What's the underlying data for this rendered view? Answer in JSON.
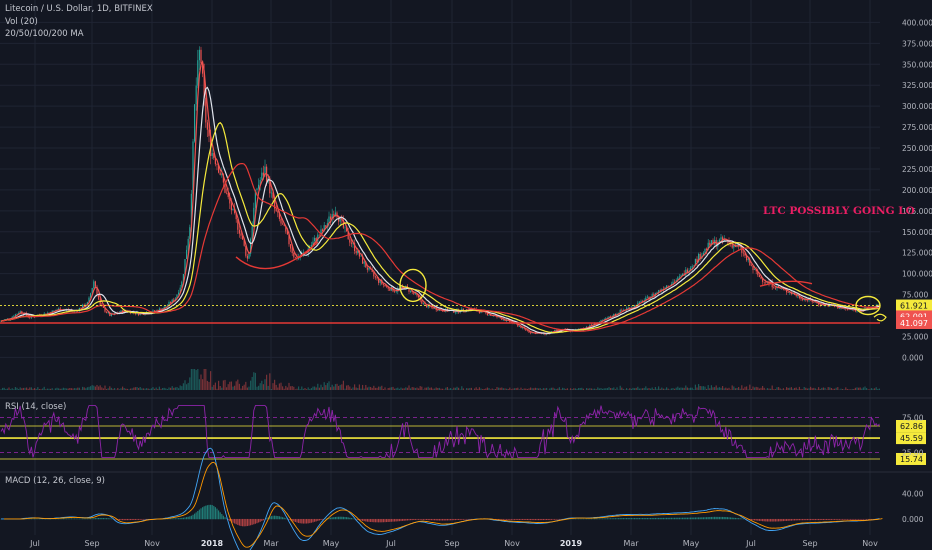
{
  "legend": {
    "symbol": "Litecoin / U.S. Dollar, 1D, BITFINEX",
    "volume": "Vol (20)",
    "ma": "20/50/100/200 MA",
    "rsi": "RSI (14, close)",
    "macd": "MACD (12, 26, close, 9)"
  },
  "colors": {
    "background": "#131722",
    "grid": "#1f2433",
    "axis_text": "#b2b5be",
    "candle_up": "#26a69a",
    "candle_down": "#ef5350",
    "ma20": "#ef5350",
    "ma50": "#e0e3eb",
    "ma100": "#f5ea3c",
    "ma200": "#e53935",
    "annotation_yellow": "#f5ea3c",
    "annotation_red": "#e53935",
    "rsi_line": "#8e24aa",
    "macd_line": "#42a5f5",
    "signal_line": "#ff9800",
    "title_text": "#e91e63"
  },
  "chart_data": [
    {
      "type": "line",
      "subtype": "candlestick",
      "x_ticks": [
        "Jul",
        "Sep",
        "Nov",
        "2018",
        "Mar",
        "May",
        "Jul",
        "Sep",
        "Nov",
        "2019",
        "Mar",
        "May",
        "Jul",
        "Sep",
        "Nov"
      ],
      "y_ticks": [
        400,
        375,
        350,
        325,
        300,
        275,
        250,
        225,
        200,
        175,
        150,
        125,
        100,
        75,
        25,
        0
      ],
      "y_tick_labels": [
        "400.000",
        "375.000",
        "350.000",
        "325.000",
        "300.000",
        "275.000",
        "250.000",
        "225.000",
        "200.000",
        "175.000",
        "150.000",
        "125.000",
        "100.000",
        "75.000",
        "25.000",
        "0.000"
      ],
      "ylim": [
        -15,
        410
      ],
      "price_path": [
        [
          0,
          43
        ],
        [
          10,
          47
        ],
        [
          20,
          55
        ],
        [
          30,
          48
        ],
        [
          45,
          52
        ],
        [
          60,
          58
        ],
        [
          75,
          55
        ],
        [
          88,
          65
        ],
        [
          94,
          92
        ],
        [
          100,
          62
        ],
        [
          110,
          50
        ],
        [
          125,
          56
        ],
        [
          140,
          52
        ],
        [
          155,
          55
        ],
        [
          165,
          60
        ],
        [
          175,
          70
        ],
        [
          182,
          90
        ],
        [
          190,
          160
        ],
        [
          195,
          310
        ],
        [
          200,
          370
        ],
        [
          205,
          290
        ],
        [
          210,
          250
        ],
        [
          218,
          230
        ],
        [
          225,
          200
        ],
        [
          232,
          175
        ],
        [
          240,
          150
        ],
        [
          248,
          115
        ],
        [
          256,
          200
        ],
        [
          265,
          225
        ],
        [
          275,
          175
        ],
        [
          285,
          150
        ],
        [
          295,
          118
        ],
        [
          305,
          125
        ],
        [
          315,
          140
        ],
        [
          325,
          155
        ],
        [
          335,
          178
        ],
        [
          345,
          150
        ],
        [
          355,
          130
        ],
        [
          365,
          110
        ],
        [
          375,
          95
        ],
        [
          385,
          85
        ],
        [
          395,
          80
        ],
        [
          405,
          84
        ],
        [
          415,
          75
        ],
        [
          425,
          62
        ],
        [
          440,
          57
        ],
        [
          455,
          55
        ],
        [
          470,
          58
        ],
        [
          485,
          53
        ],
        [
          500,
          47
        ],
        [
          515,
          40
        ],
        [
          530,
          30
        ],
        [
          545,
          28
        ],
        [
          560,
          33
        ],
        [
          575,
          32
        ],
        [
          590,
          38
        ],
        [
          605,
          45
        ],
        [
          620,
          55
        ],
        [
          635,
          62
        ],
        [
          650,
          72
        ],
        [
          665,
          85
        ],
        [
          680,
          95
        ],
        [
          695,
          115
        ],
        [
          710,
          135
        ],
        [
          725,
          140
        ],
        [
          740,
          130
        ],
        [
          750,
          110
        ],
        [
          760,
          95
        ],
        [
          770,
          88
        ],
        [
          780,
          82
        ],
        [
          790,
          78
        ],
        [
          800,
          72
        ],
        [
          810,
          68
        ],
        [
          820,
          64
        ],
        [
          830,
          62
        ],
        [
          845,
          58
        ],
        [
          860,
          56
        ],
        [
          870,
          60
        ],
        [
          878,
          62
        ]
      ],
      "moving_averages": [
        {
          "name": "20",
          "color_key": "ma20",
          "lag": 4,
          "window": 20
        },
        {
          "name": "50",
          "color_key": "ma50",
          "lag": 10,
          "window": 50
        },
        {
          "name": "100",
          "color_key": "ma100",
          "lag": 20,
          "window": 100
        },
        {
          "name": "200",
          "color_key": "ma200",
          "lag": 40,
          "window": 200
        }
      ],
      "horizontal_lines": [
        {
          "value": 61.921,
          "label": "61.921",
          "style": "dotted",
          "color_key": "annotation_yellow",
          "label_bg": "#f5ea3c",
          "label_fg": "#131722"
        },
        {
          "value": 62.091,
          "label": "62.091",
          "style": "none",
          "color_key": "candle_down",
          "label_bg": "#ef5350",
          "label_fg": "#ffffff"
        },
        {
          "value": 41.097,
          "label": "41.097",
          "style": "solid",
          "color_key": "annotation_red",
          "label_bg": "#ef5350",
          "label_fg": "#ffffff"
        }
      ],
      "annotations": [
        {
          "text": "LTC POSSIBLY GOING LO",
          "color_key": "title_text"
        }
      ]
    },
    {
      "type": "line",
      "title": "RSI (14, close)",
      "ylim": [
        0,
        100
      ],
      "y_ticks": [
        75,
        25
      ],
      "y_tick_labels": [
        "75.00",
        "25.00"
      ],
      "levels": [
        {
          "value": 62.86,
          "label": "62.86",
          "color_key": "annotation_yellow"
        },
        {
          "value": 45.59,
          "label": "45.59",
          "color_key": "annotation_yellow"
        },
        {
          "value": 15.74,
          "label": "15.74",
          "color_key": "annotation_yellow"
        }
      ]
    },
    {
      "type": "line",
      "title": "MACD (12, 26, close, 9)",
      "ylim": [
        -25,
        70
      ],
      "y_ticks": [
        40,
        0
      ],
      "y_tick_labels": [
        "40.00",
        "0.000"
      ]
    }
  ]
}
